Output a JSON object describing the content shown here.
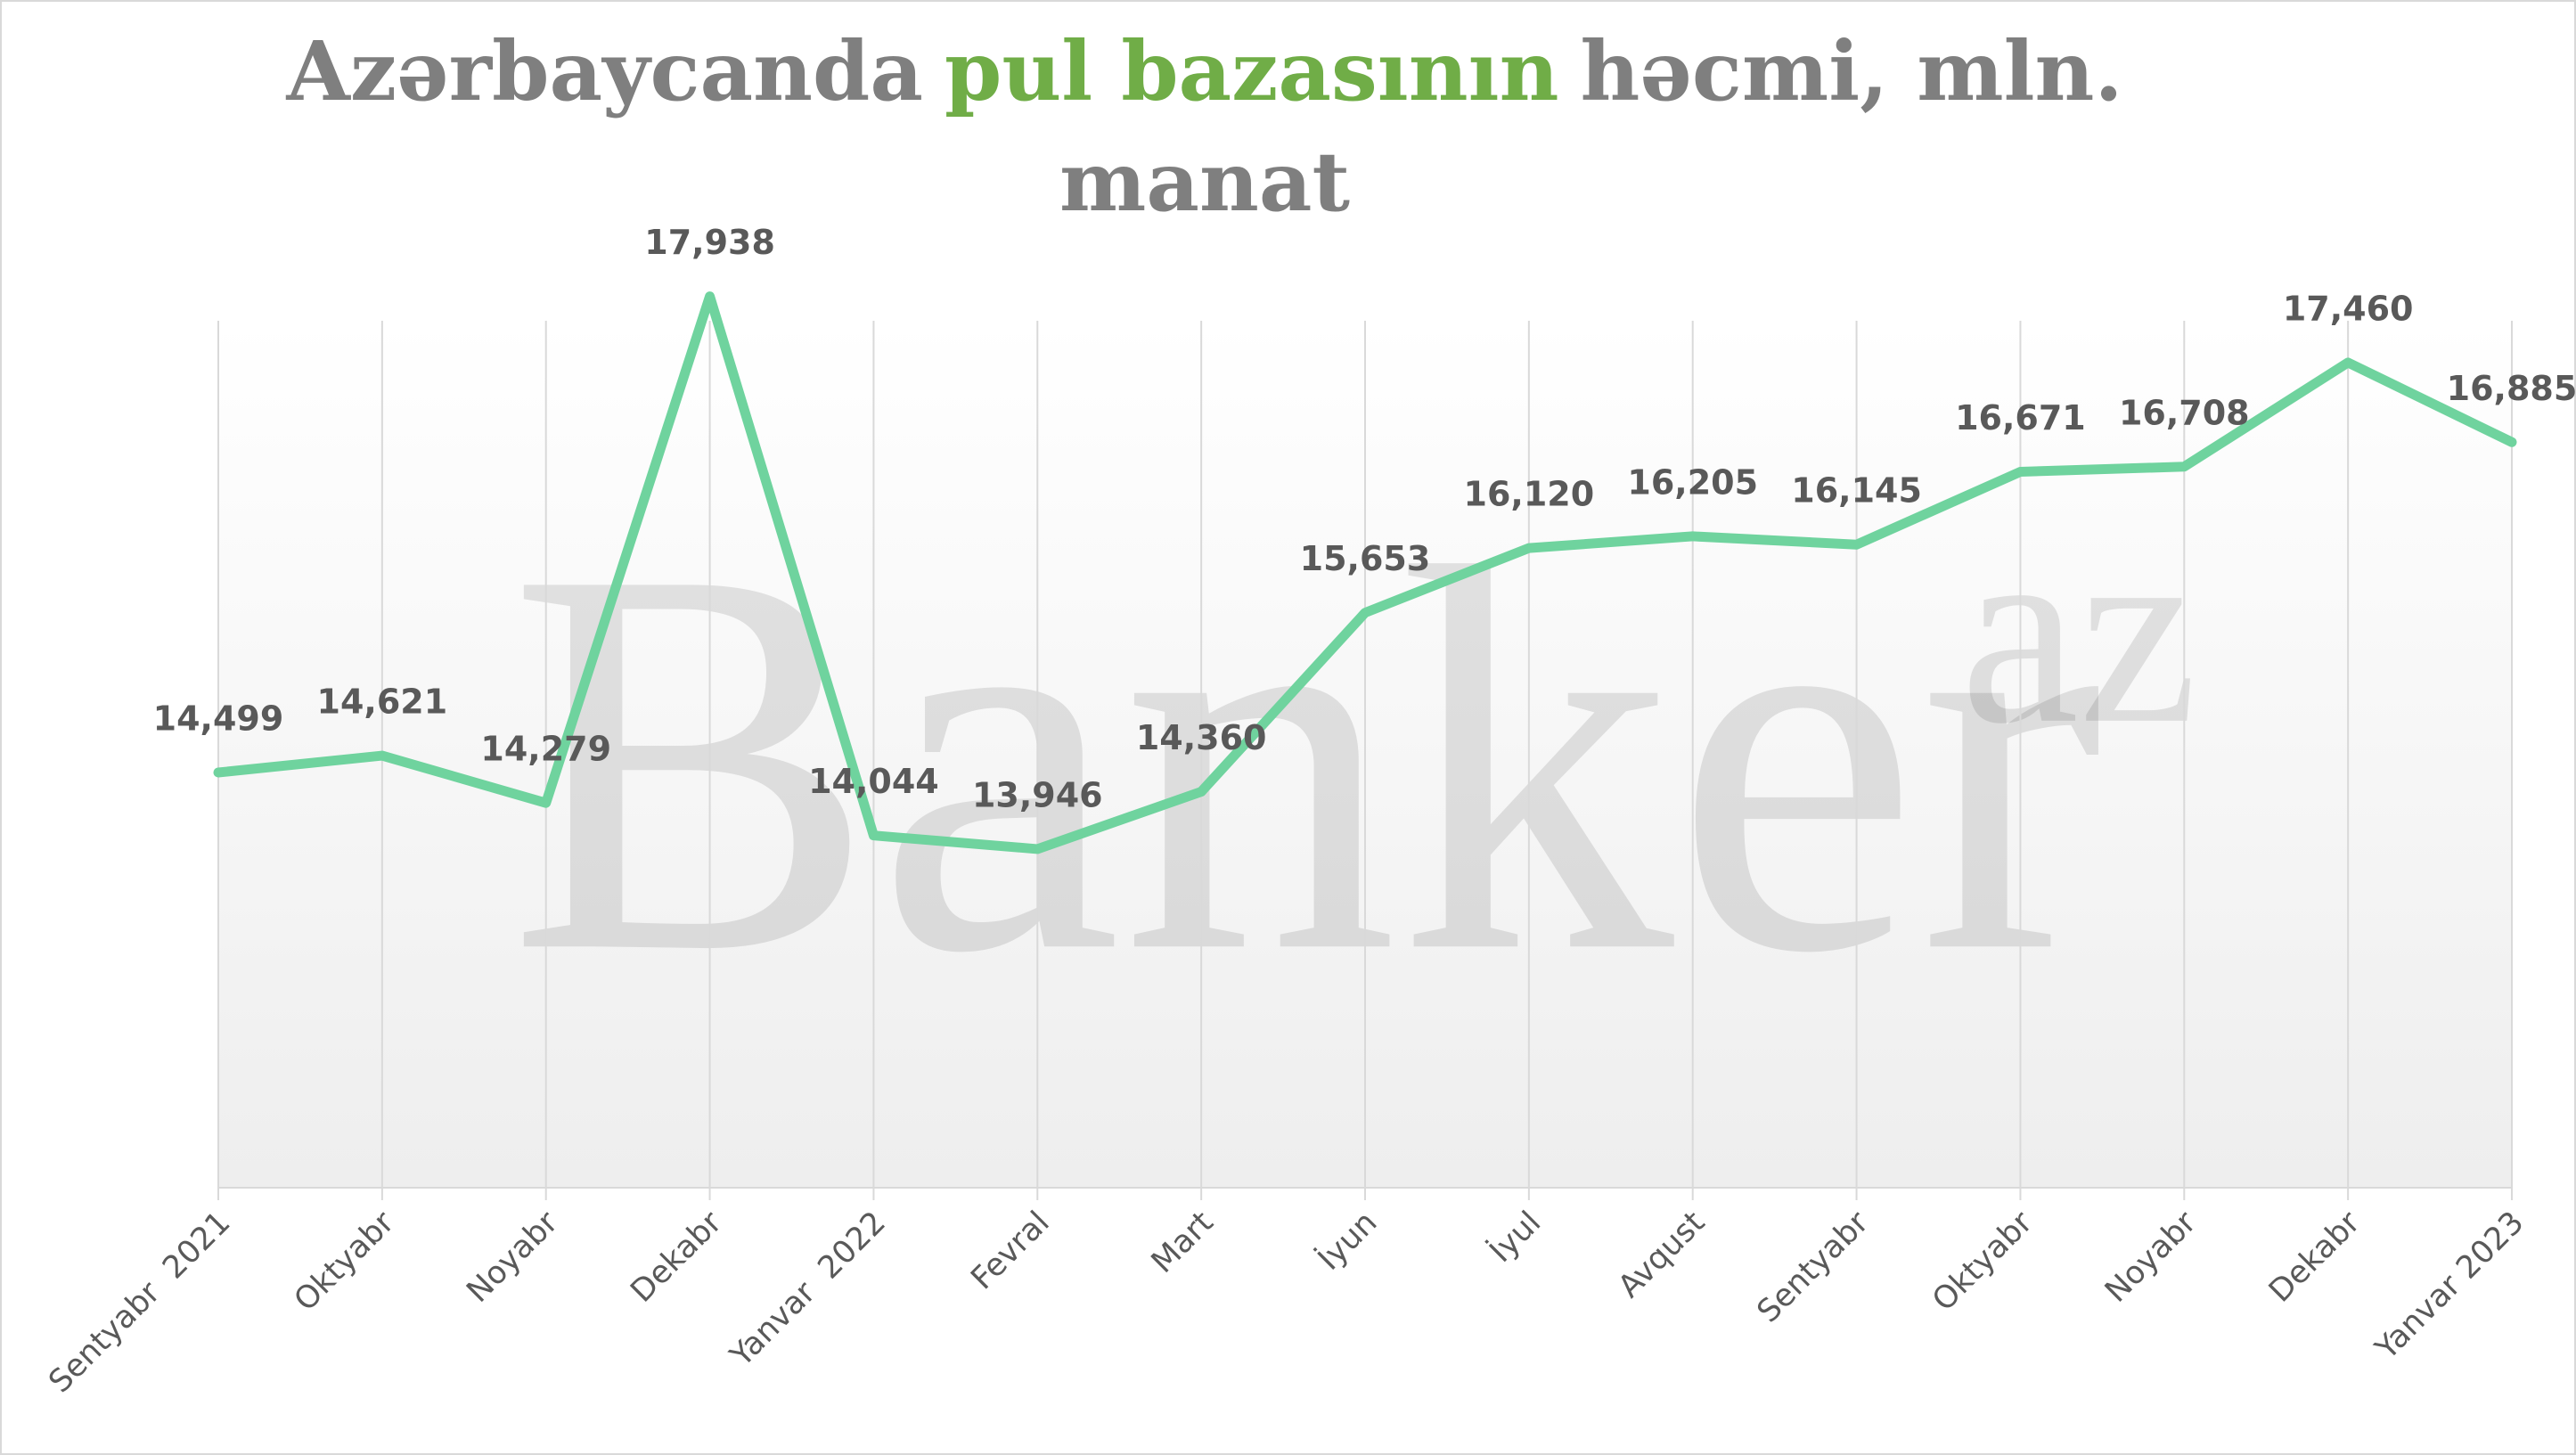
{
  "chart_data": {
    "type": "line",
    "title_parts": [
      {
        "text": "Azərbaycanda",
        "color": "#7f7f7f"
      },
      {
        "text": "pul bazasının",
        "color": "#70ad47"
      },
      {
        "text": "həcmi, mln.",
        "color": "#7f7f7f"
      },
      {
        "text": "manat",
        "color": "#7f7f7f"
      }
    ],
    "watermark": "Banker",
    "watermark_sup": "az",
    "categories": [
      "Sentyabr  2021",
      "Oktyabr",
      "Noyabr",
      "Dekabr",
      "Yanvar  2022",
      "Fevral",
      "Mart",
      "İyun",
      "İyul",
      "Avqust",
      "Sentyabr",
      "Oktyabr",
      "Noyabr",
      "Dekabr",
      "Yanvar 2023"
    ],
    "series": [
      {
        "color": "#6fd39e",
        "values": [
          14499,
          14621,
          14279,
          17938,
          14044,
          13946,
          14360,
          15653,
          16120,
          16205,
          16145,
          16671,
          16708,
          17460,
          16885
        ],
        "value_labels": [
          "14,499",
          "14,621",
          "14,279",
          "17,938",
          "14,044",
          "13,946",
          "14,360",
          "15,653",
          "16,120",
          "16,205",
          "16,145",
          "16,671",
          "16,708",
          "17,460",
          "16,885"
        ]
      }
    ],
    "ylim": [
      11500,
      18000
    ],
    "grid": true
  }
}
